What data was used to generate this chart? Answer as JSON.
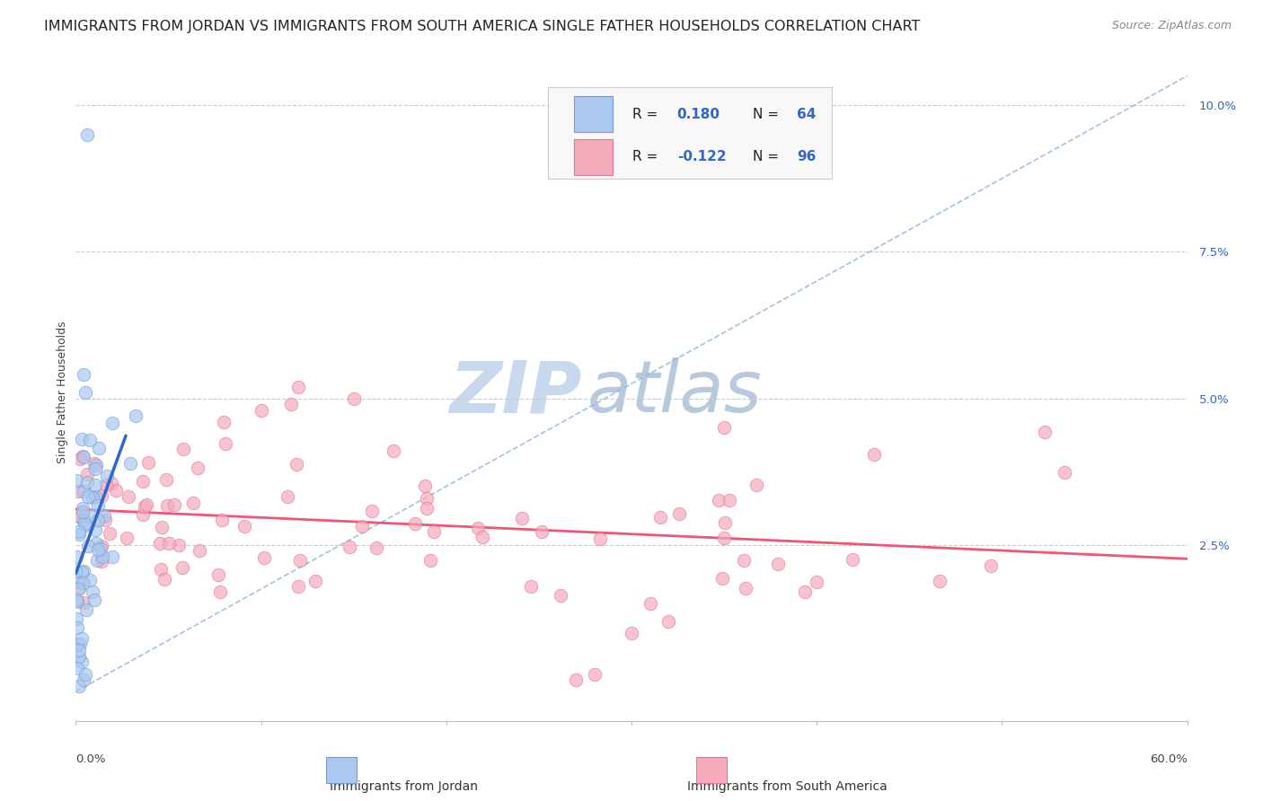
{
  "title": "IMMIGRANTS FROM JORDAN VS IMMIGRANTS FROM SOUTH AMERICA SINGLE FATHER HOUSEHOLDS CORRELATION CHART",
  "source": "Source: ZipAtlas.com",
  "ylabel": "Single Father Households",
  "xlim": [
    0.0,
    0.6
  ],
  "ylim": [
    -0.005,
    0.107
  ],
  "yticks": [
    0.025,
    0.05,
    0.075,
    0.1
  ],
  "ytick_labels": [
    "2.5%",
    "5.0%",
    "7.5%",
    "10.0%"
  ],
  "jordan_R": 0.18,
  "jordan_N": 64,
  "sa_R": -0.122,
  "sa_N": 96,
  "jordan_color": "#aac8f0",
  "jordan_edge": "#7799cc",
  "sa_color": "#f5aabb",
  "sa_edge": "#dd7799",
  "jordan_line_color": "#3366cc",
  "sa_line_color": "#ee5577",
  "diagonal_color": "#99bbdd",
  "background_color": "#ffffff",
  "watermark_zip_color": "#c8d8ee",
  "watermark_atlas_color": "#b8c8dd",
  "legend_box_color": "#f8f8f8",
  "title_fontsize": 11.5,
  "axis_label_fontsize": 9,
  "tick_fontsize": 9.5,
  "source_fontsize": 9
}
